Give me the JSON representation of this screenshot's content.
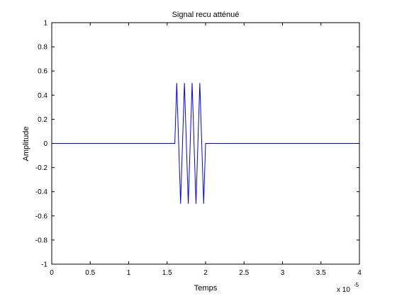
{
  "chart_data": {
    "type": "line",
    "title": "Signal recu atténué",
    "xlabel": "Temps",
    "ylabel": "Amplitude",
    "x_exponent_base": "x 10",
    "x_exponent_power": "-5",
    "xlim": [
      0,
      4
    ],
    "ylim": [
      -1,
      1
    ],
    "x_ticks": [
      0,
      0.5,
      1,
      1.5,
      2,
      2.5,
      3,
      3.5,
      4
    ],
    "x_tick_labels": [
      "0",
      "0.5",
      "1",
      "1.5",
      "2",
      "2.5",
      "3",
      "3.5",
      "4"
    ],
    "y_ticks": [
      1,
      0.8,
      0.6,
      0.4,
      0.2,
      0,
      -0.2,
      -0.4,
      -0.6,
      -0.8,
      -1
    ],
    "y_tick_labels": [
      "1",
      "0.8",
      "0.6",
      "0.4",
      "0.2",
      "0",
      "-0.2",
      "-0.4",
      "-0.6",
      "-0.8",
      "-1"
    ],
    "grid": false,
    "series": [
      {
        "color": "#0000ff",
        "x": [
          0,
          1.6,
          1.6,
          1.625,
          1.65,
          1.675,
          1.7,
          1.725,
          1.75,
          1.775,
          1.8,
          1.825,
          1.85,
          1.875,
          1.9,
          1.925,
          1.95,
          1.975,
          2.0,
          2.0,
          4.0
        ],
        "y": [
          0,
          0,
          0,
          0.5,
          0,
          -0.5,
          0,
          0.5,
          0,
          -0.5,
          0,
          0.5,
          0,
          -0.5,
          0,
          0.5,
          0,
          -0.5,
          0,
          0,
          0
        ]
      }
    ]
  }
}
